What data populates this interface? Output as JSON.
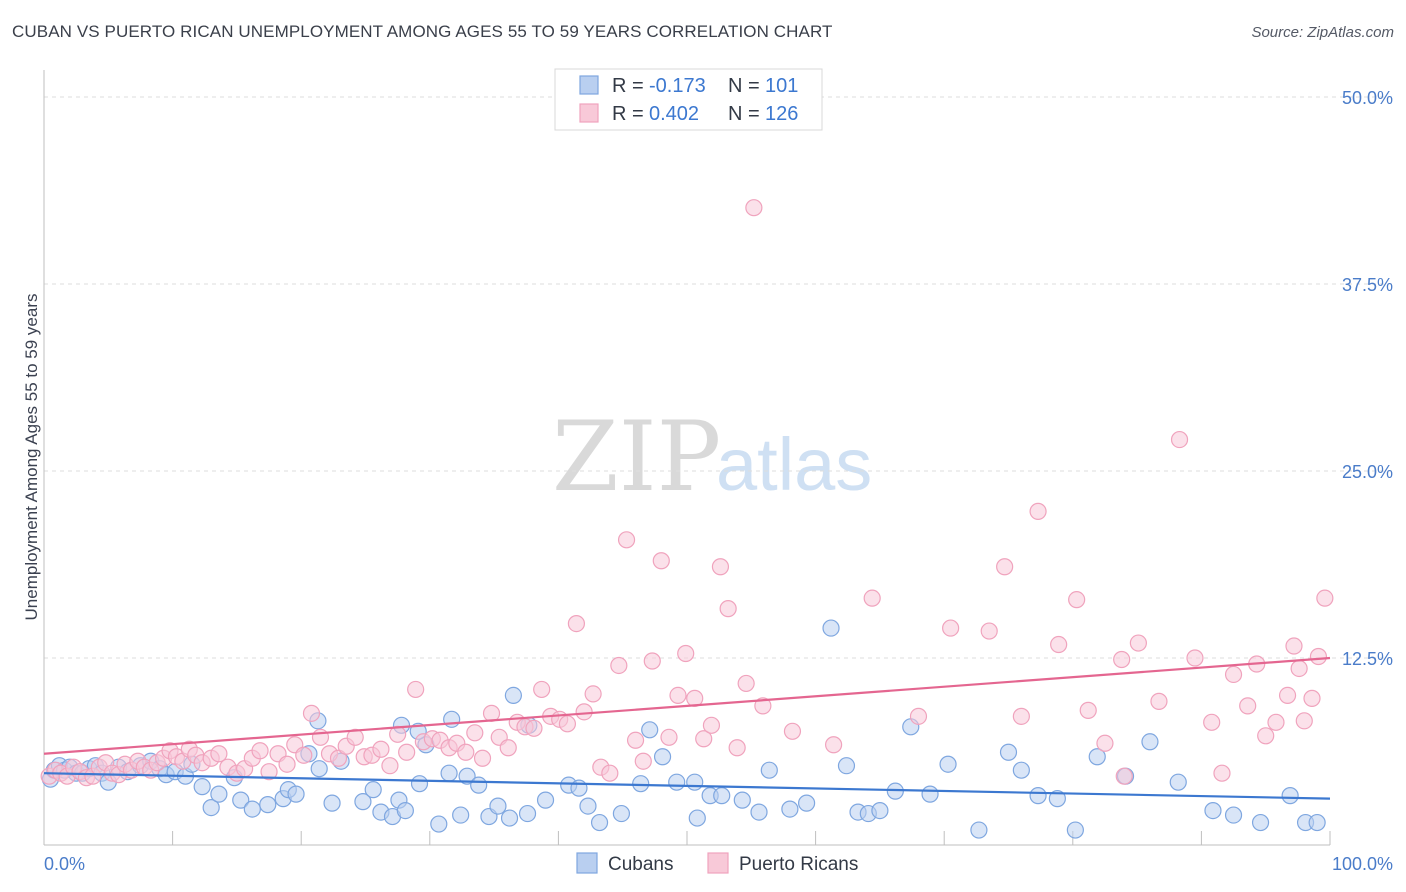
{
  "title": "CUBAN VS PUERTO RICAN UNEMPLOYMENT AMONG AGES 55 TO 59 YEARS CORRELATION CHART",
  "source": "Source: ZipAtlas.com",
  "watermark": {
    "part1": "ZIP",
    "part2": "atlas"
  },
  "chart_data": {
    "type": "scatter",
    "ylabel": "Unemployment Among Ages 55 to 59 years",
    "xlim": [
      0,
      100
    ],
    "ylim": [
      0,
      52
    ],
    "x_tick_labels": [
      {
        "value": 0,
        "label": "0.0%"
      },
      {
        "value": 100,
        "label": "100.0%"
      }
    ],
    "y_tick_labels": [
      {
        "value": 12.5,
        "label": "12.5%"
      },
      {
        "value": 25,
        "label": "25.0%"
      },
      {
        "value": 37.5,
        "label": "37.5%"
      },
      {
        "value": 50,
        "label": "50.0%"
      }
    ],
    "grid": "dashed horizontal",
    "legend_position": "bottom",
    "stats_box_position": "top-center",
    "series": [
      {
        "name": "Cubans",
        "stat_r_label": "R =",
        "stat_r": "-0.173",
        "stat_n_label": "N =",
        "stat_n": "101",
        "color": "#7fa7e0",
        "fill": "#b9cff0",
        "line_color": "#3c78d0",
        "trend": {
          "x": [
            0,
            100
          ],
          "y": [
            4.8,
            3.1
          ]
        },
        "points": [
          [
            0.5,
            4.4
          ],
          [
            0.8,
            5.0
          ],
          [
            1.2,
            5.3
          ],
          [
            1.6,
            5.0
          ],
          [
            2.0,
            5.2
          ],
          [
            2.5,
            4.8
          ],
          [
            3.0,
            4.8
          ],
          [
            3.5,
            5.1
          ],
          [
            4.0,
            5.3
          ],
          [
            4.5,
            4.8
          ],
          [
            5.0,
            4.2
          ],
          [
            5.8,
            5.2
          ],
          [
            6.5,
            4.9
          ],
          [
            7.5,
            5.3
          ],
          [
            8.3,
            5.6
          ],
          [
            9.0,
            5.1
          ],
          [
            9.5,
            4.7
          ],
          [
            10.2,
            4.9
          ],
          [
            11.0,
            4.6
          ],
          [
            11.5,
            5.4
          ],
          [
            12.3,
            3.9
          ],
          [
            13.0,
            2.5
          ],
          [
            13.6,
            3.4
          ],
          [
            14.8,
            4.5
          ],
          [
            15.3,
            3.0
          ],
          [
            16.2,
            2.4
          ],
          [
            17.4,
            2.7
          ],
          [
            18.6,
            3.1
          ],
          [
            19.0,
            3.7
          ],
          [
            19.6,
            3.4
          ],
          [
            20.6,
            6.1
          ],
          [
            21.4,
            5.1
          ],
          [
            22.4,
            2.8
          ],
          [
            23.1,
            5.6
          ],
          [
            24.8,
            2.9
          ],
          [
            25.6,
            3.7
          ],
          [
            26.2,
            2.2
          ],
          [
            27.1,
            1.9
          ],
          [
            27.6,
            3.0
          ],
          [
            28.1,
            2.3
          ],
          [
            29.2,
            4.1
          ],
          [
            29.7,
            6.7
          ],
          [
            30.7,
            1.4
          ],
          [
            31.5,
            4.8
          ],
          [
            32.4,
            2.0
          ],
          [
            32.9,
            4.6
          ],
          [
            33.8,
            4.0
          ],
          [
            34.6,
            1.9
          ],
          [
            35.3,
            2.6
          ],
          [
            36.2,
            1.8
          ],
          [
            37.6,
            2.1
          ],
          [
            39.0,
            3.0
          ],
          [
            40.8,
            4.0
          ],
          [
            41.6,
            3.8
          ],
          [
            42.3,
            2.6
          ],
          [
            43.2,
            1.5
          ],
          [
            44.9,
            2.1
          ],
          [
            46.4,
            4.1
          ],
          [
            47.1,
            7.7
          ],
          [
            48.1,
            5.9
          ],
          [
            49.2,
            4.2
          ],
          [
            50.8,
            1.8
          ],
          [
            51.8,
            3.3
          ],
          [
            52.7,
            3.3
          ],
          [
            54.3,
            3.0
          ],
          [
            55.6,
            2.2
          ],
          [
            56.4,
            5.0
          ],
          [
            58.0,
            2.4
          ],
          [
            59.3,
            2.8
          ],
          [
            61.2,
            14.5
          ],
          [
            62.4,
            5.3
          ],
          [
            63.3,
            2.2
          ],
          [
            64.1,
            2.1
          ],
          [
            65.0,
            2.3
          ],
          [
            66.2,
            3.6
          ],
          [
            67.4,
            7.9
          ],
          [
            68.9,
            3.4
          ],
          [
            70.3,
            5.4
          ],
          [
            72.7,
            1.0
          ],
          [
            75.0,
            6.2
          ],
          [
            76.0,
            5.0
          ],
          [
            77.3,
            3.3
          ],
          [
            78.8,
            3.1
          ],
          [
            80.2,
            1.0
          ],
          [
            81.9,
            5.9
          ],
          [
            84.1,
            4.6
          ],
          [
            86.0,
            6.9
          ],
          [
            88.2,
            4.2
          ],
          [
            90.9,
            2.3
          ],
          [
            92.5,
            2.0
          ],
          [
            94.6,
            1.5
          ],
          [
            96.9,
            3.3
          ],
          [
            98.1,
            1.5
          ],
          [
            99.0,
            1.5
          ],
          [
            21.3,
            8.3
          ],
          [
            27.8,
            8.0
          ],
          [
            29.1,
            7.6
          ],
          [
            31.7,
            8.4
          ],
          [
            36.5,
            10.0
          ],
          [
            37.7,
            8.0
          ],
          [
            50.6,
            4.2
          ]
        ]
      },
      {
        "name": "Puerto Ricans",
        "stat_r_label": "R =",
        "stat_r": "0.402",
        "stat_n_label": "N =",
        "stat_n": "126",
        "color": "#f0a3bd",
        "fill": "#f8c9d8",
        "line_color": "#e46690",
        "trend": {
          "x": [
            0,
            100
          ],
          "y": [
            6.1,
            12.5
          ]
        },
        "points": [
          [
            0.4,
            4.6
          ],
          [
            0.9,
            5.0
          ],
          [
            1.3,
            4.8
          ],
          [
            1.8,
            4.6
          ],
          [
            2.3,
            5.2
          ],
          [
            2.8,
            4.9
          ],
          [
            3.3,
            4.5
          ],
          [
            3.8,
            4.6
          ],
          [
            4.3,
            5.2
          ],
          [
            4.8,
            5.5
          ],
          [
            5.3,
            4.8
          ],
          [
            5.8,
            4.7
          ],
          [
            6.3,
            5.4
          ],
          [
            6.8,
            5.0
          ],
          [
            7.3,
            5.6
          ],
          [
            7.8,
            5.2
          ],
          [
            8.3,
            5.0
          ],
          [
            8.8,
            5.5
          ],
          [
            9.3,
            5.8
          ],
          [
            9.8,
            6.3
          ],
          [
            10.3,
            5.9
          ],
          [
            10.8,
            5.6
          ],
          [
            11.3,
            6.4
          ],
          [
            11.8,
            6.0
          ],
          [
            12.3,
            5.5
          ],
          [
            13.0,
            5.8
          ],
          [
            13.6,
            6.1
          ],
          [
            14.3,
            5.2
          ],
          [
            15.0,
            4.8
          ],
          [
            15.6,
            5.1
          ],
          [
            16.2,
            5.8
          ],
          [
            16.8,
            6.3
          ],
          [
            17.5,
            4.9
          ],
          [
            18.2,
            6.1
          ],
          [
            18.9,
            5.4
          ],
          [
            19.5,
            6.7
          ],
          [
            20.2,
            6.0
          ],
          [
            20.8,
            8.8
          ],
          [
            21.5,
            7.2
          ],
          [
            22.2,
            6.1
          ],
          [
            22.9,
            5.8
          ],
          [
            23.5,
            6.6
          ],
          [
            24.2,
            7.2
          ],
          [
            24.9,
            5.9
          ],
          [
            25.5,
            6.0
          ],
          [
            26.2,
            6.4
          ],
          [
            26.9,
            5.3
          ],
          [
            27.5,
            7.4
          ],
          [
            28.2,
            6.2
          ],
          [
            28.9,
            10.4
          ],
          [
            29.5,
            6.9
          ],
          [
            30.2,
            7.1
          ],
          [
            30.8,
            7.0
          ],
          [
            31.5,
            6.5
          ],
          [
            32.1,
            6.8
          ],
          [
            32.8,
            6.2
          ],
          [
            33.5,
            7.5
          ],
          [
            34.1,
            5.8
          ],
          [
            34.8,
            8.8
          ],
          [
            35.4,
            7.2
          ],
          [
            36.1,
            6.5
          ],
          [
            36.8,
            8.2
          ],
          [
            37.4,
            7.9
          ],
          [
            38.1,
            7.8
          ],
          [
            38.7,
            10.4
          ],
          [
            39.4,
            8.6
          ],
          [
            40.1,
            8.4
          ],
          [
            40.7,
            8.1
          ],
          [
            41.4,
            14.8
          ],
          [
            42.0,
            8.9
          ],
          [
            42.7,
            10.1
          ],
          [
            43.3,
            5.2
          ],
          [
            44.0,
            4.8
          ],
          [
            44.7,
            12.0
          ],
          [
            45.3,
            20.4
          ],
          [
            46.0,
            7.0
          ],
          [
            46.6,
            5.6
          ],
          [
            47.3,
            12.3
          ],
          [
            48.0,
            19.0
          ],
          [
            48.6,
            7.2
          ],
          [
            49.3,
            10.0
          ],
          [
            49.9,
            12.8
          ],
          [
            50.6,
            9.8
          ],
          [
            51.3,
            7.1
          ],
          [
            51.9,
            8.0
          ],
          [
            52.6,
            18.6
          ],
          [
            53.2,
            15.8
          ],
          [
            53.9,
            6.5
          ],
          [
            54.6,
            10.8
          ],
          [
            55.2,
            42.6
          ],
          [
            55.9,
            9.3
          ],
          [
            58.2,
            7.6
          ],
          [
            61.4,
            6.7
          ],
          [
            64.4,
            16.5
          ],
          [
            68.0,
            8.6
          ],
          [
            70.5,
            14.5
          ],
          [
            73.5,
            14.3
          ],
          [
            74.7,
            18.6
          ],
          [
            76.0,
            8.6
          ],
          [
            77.3,
            22.3
          ],
          [
            78.9,
            13.4
          ],
          [
            80.3,
            16.4
          ],
          [
            81.2,
            9.0
          ],
          [
            82.5,
            6.8
          ],
          [
            83.8,
            12.4
          ],
          [
            85.1,
            13.5
          ],
          [
            86.7,
            9.6
          ],
          [
            88.3,
            27.1
          ],
          [
            89.5,
            12.5
          ],
          [
            90.8,
            8.2
          ],
          [
            91.6,
            4.8
          ],
          [
            92.5,
            11.4
          ],
          [
            93.6,
            9.3
          ],
          [
            94.3,
            12.1
          ],
          [
            95.0,
            7.3
          ],
          [
            95.8,
            8.2
          ],
          [
            96.7,
            10.0
          ],
          [
            97.6,
            11.8
          ],
          [
            98.0,
            8.3
          ],
          [
            98.6,
            9.8
          ],
          [
            99.1,
            12.6
          ],
          [
            99.6,
            16.5
          ],
          [
            97.2,
            13.3
          ],
          [
            84.0,
            4.6
          ]
        ]
      }
    ]
  }
}
